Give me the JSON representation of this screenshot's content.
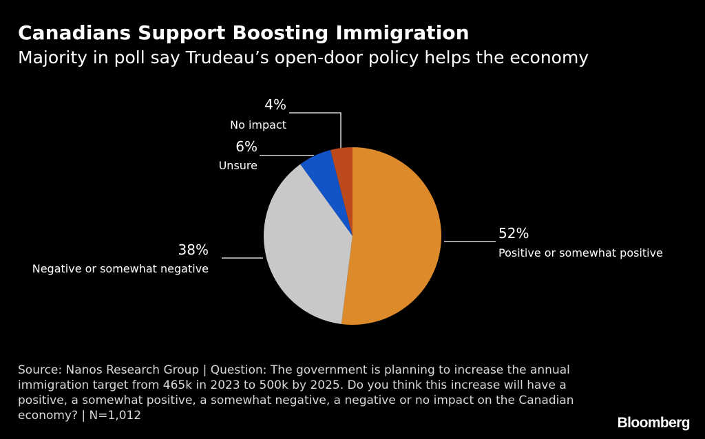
{
  "chart_data": {
    "type": "pie",
    "title": "Canadians Support Boosting Immigration",
    "subtitle": "Majority in poll say Trudeau’s open-door policy helps the economy",
    "slices": [
      {
        "key": "positive",
        "label": "Positive or somewhat positive",
        "value": 52,
        "display": "52%",
        "color": "#dd8a2b"
      },
      {
        "key": "negative",
        "label": "Negative or somewhat negative",
        "value": 38,
        "display": "38%",
        "color": "#c8c8c8"
      },
      {
        "key": "unsure",
        "label": "Unsure",
        "value": 6,
        "display": "6%",
        "color": "#1154c7"
      },
      {
        "key": "no-impact",
        "label": "No impact",
        "value": 4,
        "display": "4%",
        "color": "#bd4a1d"
      }
    ],
    "start": "12 o'clock",
    "direction": "clockwise"
  },
  "footer": {
    "source": "Source: Nanos Research Group | Question: The government is planning to increase the annual immigration target from 465k in 2023 to 500k by 2025. Do you think this increase will have a positive, a somewhat positive, a somewhat negative, a negative or no impact on the Canadian economy? | N=1,012",
    "brand": "Bloomberg"
  }
}
